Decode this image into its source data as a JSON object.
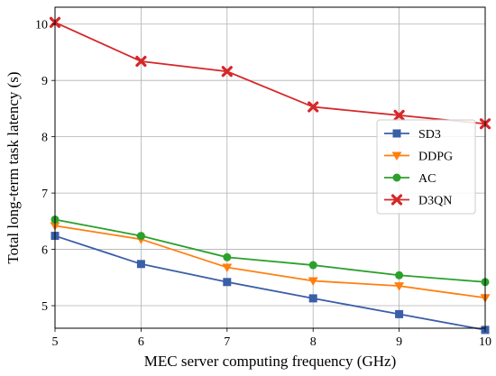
{
  "chart_data": {
    "type": "line",
    "xlabel": "MEC server computing frequency (GHz)",
    "ylabel": "Total long-term task latency (s)",
    "x": [
      5,
      6,
      7,
      8,
      9,
      10
    ],
    "xlim": [
      5,
      10
    ],
    "ylim": [
      4.6,
      10.3
    ],
    "xticks": [
      "5",
      "6",
      "7",
      "8",
      "9",
      "10"
    ],
    "yticks": [
      "5",
      "6",
      "7",
      "8",
      "9",
      "10"
    ],
    "grid": true,
    "legend_position": "right",
    "series": [
      {
        "name": "SD3",
        "color": "#3a5fa8",
        "marker": "square",
        "values": [
          6.24,
          5.74,
          5.42,
          5.13,
          4.85,
          4.57
        ]
      },
      {
        "name": "DDPG",
        "color": "#ff7f0e",
        "marker": "triangle-down",
        "values": [
          6.42,
          6.18,
          5.68,
          5.44,
          5.35,
          5.14
        ]
      },
      {
        "name": "AC",
        "color": "#2ca02c",
        "marker": "circle",
        "values": [
          6.53,
          6.24,
          5.86,
          5.72,
          5.54,
          5.42
        ]
      },
      {
        "name": "D3QN",
        "color": "#d62728",
        "marker": "x",
        "values": [
          10.03,
          9.34,
          9.16,
          8.53,
          8.38,
          8.23
        ]
      }
    ]
  }
}
